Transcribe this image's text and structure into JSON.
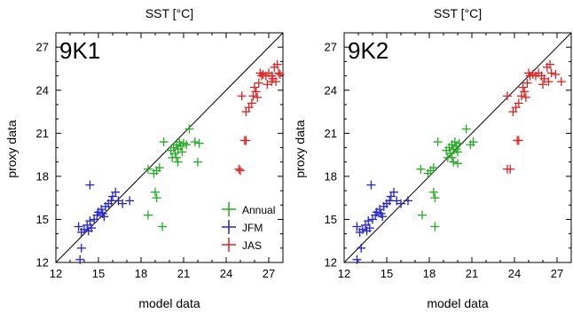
{
  "chart_data": [
    {
      "type": "scatter",
      "panel_label": "9K1",
      "title": "SST [°C]",
      "xlabel": "model data",
      "ylabel": "proxy data",
      "xlim": [
        12,
        28
      ],
      "ylim": [
        12,
        28
      ],
      "xticks": [
        "12",
        "15",
        "18",
        "21",
        "24",
        "27"
      ],
      "yticks": [
        "12",
        "15",
        "18",
        "21",
        "24",
        "27"
      ],
      "grid": false,
      "reference_line": "1:1",
      "legend": {
        "placement": "bottom-right",
        "entries": [
          "Annual",
          "JFM",
          "JAS"
        ]
      },
      "series": [
        {
          "name": "Annual",
          "color": "#22aa22",
          "points": [
            [
              18.5,
              18.5
            ],
            [
              18.9,
              18.2
            ],
            [
              19.1,
              18.4
            ],
            [
              19.3,
              18.6
            ],
            [
              19.6,
              20.4
            ],
            [
              20.1,
              19.8
            ],
            [
              20.2,
              19.3
            ],
            [
              20.3,
              20.0
            ],
            [
              20.4,
              19.6
            ],
            [
              20.5,
              20.2
            ],
            [
              20.6,
              19.9
            ],
            [
              20.7,
              20.4
            ],
            [
              20.8,
              20.1
            ],
            [
              20.9,
              19.7
            ],
            [
              21.0,
              20.3
            ],
            [
              20.5,
              19.3
            ],
            [
              20.6,
              19.0
            ],
            [
              21.4,
              21.3
            ],
            [
              21.2,
              20.2
            ],
            [
              21.8,
              20.4
            ],
            [
              22.1,
              20.3
            ],
            [
              22.0,
              19.0
            ],
            [
              19.0,
              16.9
            ],
            [
              19.1,
              16.5
            ],
            [
              18.5,
              15.3
            ],
            [
              19.5,
              14.5
            ]
          ]
        },
        {
          "name": "JFM",
          "color": "#2222cc",
          "points": [
            [
              13.6,
              14.5
            ],
            [
              13.8,
              14.1
            ],
            [
              14.0,
              14.3
            ],
            [
              14.2,
              14.6
            ],
            [
              14.4,
              14.9
            ],
            [
              14.5,
              14.4
            ],
            [
              14.7,
              15.0
            ],
            [
              14.9,
              15.3
            ],
            [
              15.0,
              15.5
            ],
            [
              15.2,
              15.7
            ],
            [
              15.3,
              15.4
            ],
            [
              15.5,
              15.9
            ],
            [
              15.7,
              16.1
            ],
            [
              15.9,
              16.3
            ],
            [
              16.0,
              16.6
            ],
            [
              16.2,
              16.9
            ],
            [
              16.4,
              16.3
            ],
            [
              16.7,
              16.1
            ],
            [
              17.2,
              16.3
            ],
            [
              14.4,
              17.4
            ],
            [
              13.8,
              13.0
            ],
            [
              13.7,
              12.2
            ],
            [
              14.3,
              14.2
            ],
            [
              15.4,
              15.2
            ]
          ]
        },
        {
          "name": "JAS",
          "color": "#dd2222",
          "points": [
            [
              24.9,
              18.5
            ],
            [
              25.0,
              18.4
            ],
            [
              25.3,
              20.5
            ],
            [
              25.4,
              20.5
            ],
            [
              25.1,
              23.6
            ],
            [
              25.4,
              22.5
            ],
            [
              25.6,
              22.8
            ],
            [
              25.8,
              23.1
            ],
            [
              25.9,
              23.6
            ],
            [
              26.1,
              23.9
            ],
            [
              26.0,
              24.2
            ],
            [
              26.3,
              24.5
            ],
            [
              26.5,
              25.0
            ],
            [
              26.4,
              25.2
            ],
            [
              26.6,
              25.1
            ],
            [
              26.8,
              25.0
            ],
            [
              27.0,
              25.2
            ],
            [
              27.2,
              25.0
            ],
            [
              27.3,
              24.8
            ],
            [
              27.5,
              24.6
            ],
            [
              27.7,
              25.2
            ],
            [
              27.4,
              25.6
            ],
            [
              27.6,
              25.8
            ],
            [
              27.8,
              25.1
            ],
            [
              27.2,
              24.6
            ],
            [
              26.2,
              23.5
            ],
            [
              26.9,
              24.4
            ]
          ]
        }
      ]
    },
    {
      "type": "scatter",
      "panel_label": "9K2",
      "title": "SST [°C]",
      "xlabel": "model data",
      "ylabel": "proxy data",
      "xlim": [
        12,
        28
      ],
      "ylim": [
        12,
        28
      ],
      "xticks": [
        "12",
        "15",
        "18",
        "21",
        "24",
        "27"
      ],
      "yticks": [
        "12",
        "15",
        "18",
        "21",
        "24",
        "27"
      ],
      "grid": false,
      "reference_line": "1:1",
      "series": [
        {
          "name": "Annual",
          "color": "#22aa22",
          "points": [
            [
              17.4,
              18.5
            ],
            [
              17.9,
              18.2
            ],
            [
              18.1,
              18.4
            ],
            [
              18.3,
              18.6
            ],
            [
              18.6,
              20.4
            ],
            [
              19.2,
              19.8
            ],
            [
              19.3,
              19.3
            ],
            [
              19.4,
              20.0
            ],
            [
              19.5,
              19.6
            ],
            [
              19.6,
              20.2
            ],
            [
              19.7,
              19.9
            ],
            [
              19.8,
              20.4
            ],
            [
              19.9,
              20.1
            ],
            [
              20.0,
              19.7
            ],
            [
              20.1,
              20.3
            ],
            [
              19.6,
              19.3
            ],
            [
              19.7,
              19.0
            ],
            [
              20.6,
              21.3
            ],
            [
              20.9,
              20.2
            ],
            [
              21.1,
              20.4
            ],
            [
              19.9,
              19.9
            ],
            [
              20.0,
              18.9
            ],
            [
              18.3,
              16.9
            ],
            [
              18.4,
              16.5
            ],
            [
              17.5,
              15.3
            ],
            [
              18.4,
              14.5
            ]
          ]
        },
        {
          "name": "JFM",
          "color": "#2222cc",
          "points": [
            [
              12.9,
              14.5
            ],
            [
              13.1,
              14.1
            ],
            [
              13.3,
              14.3
            ],
            [
              13.5,
              14.6
            ],
            [
              13.7,
              14.9
            ],
            [
              13.8,
              14.4
            ],
            [
              14.0,
              15.0
            ],
            [
              14.2,
              15.3
            ],
            [
              14.3,
              15.5
            ],
            [
              14.5,
              15.7
            ],
            [
              14.6,
              15.4
            ],
            [
              14.8,
              15.9
            ],
            [
              15.0,
              16.1
            ],
            [
              15.2,
              16.3
            ],
            [
              15.3,
              16.6
            ],
            [
              15.5,
              16.9
            ],
            [
              15.7,
              16.3
            ],
            [
              16.0,
              16.1
            ],
            [
              16.5,
              16.3
            ],
            [
              13.9,
              17.4
            ],
            [
              13.2,
              13.0
            ],
            [
              12.9,
              12.2
            ],
            [
              13.6,
              14.2
            ],
            [
              14.7,
              15.2
            ]
          ]
        },
        {
          "name": "JAS",
          "color": "#dd2222",
          "points": [
            [
              23.5,
              18.5
            ],
            [
              23.7,
              18.5
            ],
            [
              24.2,
              20.5
            ],
            [
              24.3,
              20.5
            ],
            [
              23.5,
              23.6
            ],
            [
              23.9,
              22.5
            ],
            [
              24.1,
              22.8
            ],
            [
              24.3,
              23.1
            ],
            [
              24.5,
              23.6
            ],
            [
              24.7,
              23.9
            ],
            [
              24.6,
              24.2
            ],
            [
              24.9,
              24.5
            ],
            [
              25.1,
              25.0
            ],
            [
              25.0,
              25.2
            ],
            [
              25.3,
              25.1
            ],
            [
              25.5,
              25.0
            ],
            [
              25.7,
              25.2
            ],
            [
              25.9,
              25.0
            ],
            [
              26.1,
              24.8
            ],
            [
              26.4,
              24.6
            ],
            [
              26.6,
              25.2
            ],
            [
              26.3,
              25.6
            ],
            [
              26.5,
              25.8
            ],
            [
              26.9,
              25.1
            ],
            [
              27.3,
              24.6
            ],
            [
              24.8,
              23.5
            ],
            [
              26.0,
              24.4
            ]
          ]
        }
      ]
    }
  ]
}
